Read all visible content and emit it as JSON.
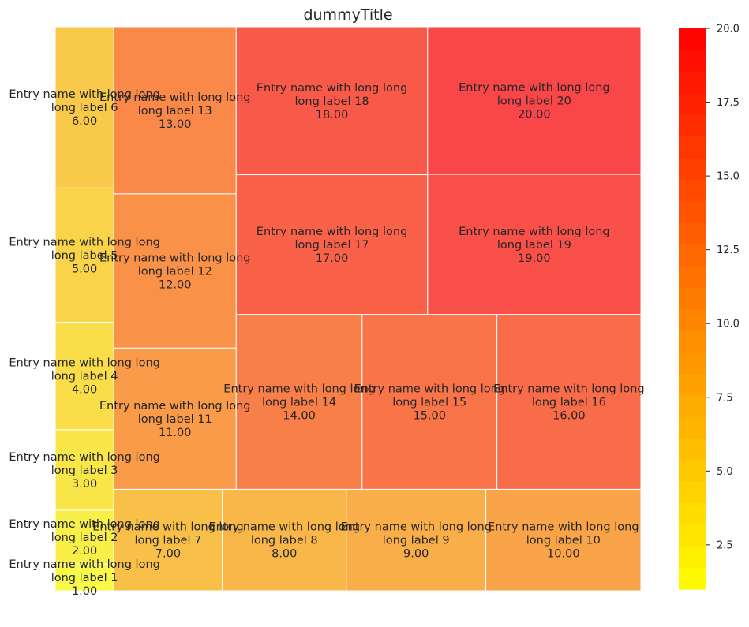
{
  "chart_data": {
    "type": "treemap",
    "title": "dummyTitle",
    "value_format": "2 decimals",
    "entries": [
      {
        "label": "Entry name with long long long label 1",
        "value": 1.0
      },
      {
        "label": "Entry name with long long long label 2",
        "value": 2.0
      },
      {
        "label": "Entry name with long long long label 3",
        "value": 3.0
      },
      {
        "label": "Entry name with long long long label 4",
        "value": 4.0
      },
      {
        "label": "Entry name with long long long label 5",
        "value": 5.0
      },
      {
        "label": "Entry name with long long long label 6",
        "value": 6.0
      },
      {
        "label": "Entry name with long long long label 7",
        "value": 7.0
      },
      {
        "label": "Entry name with long long long label 8",
        "value": 8.0
      },
      {
        "label": "Entry name with long long long label 9",
        "value": 9.0
      },
      {
        "label": "Entry name with long long long label 10",
        "value": 10.0
      },
      {
        "label": "Entry name with long long long label 11",
        "value": 11.0
      },
      {
        "label": "Entry name with long long long label 12",
        "value": 12.0
      },
      {
        "label": "Entry name with long long long label 13",
        "value": 13.0
      },
      {
        "label": "Entry name with long long long label 14",
        "value": 14.0
      },
      {
        "label": "Entry name with long long long label 15",
        "value": 15.0
      },
      {
        "label": "Entry name with long long long label 16",
        "value": 16.0
      },
      {
        "label": "Entry name with long long long label 17",
        "value": 17.0
      },
      {
        "label": "Entry name with long long long label 18",
        "value": 18.0
      },
      {
        "label": "Entry name with long long long label 19",
        "value": 19.0
      },
      {
        "label": "Entry name with long long long label 20",
        "value": 20.0
      }
    ],
    "colorbar": {
      "min": 1,
      "max": 20,
      "ticks": [
        "2.5",
        "5.0",
        "7.5",
        "10.0",
        "12.5",
        "15.0",
        "17.5",
        "20.0"
      ],
      "colormap": "autumn_r (yellow to red)"
    },
    "colors": {
      "low": "#ffff00",
      "high": "#ff0000",
      "tile_border": "#ffffff",
      "text": "#262626"
    },
    "tile_alpha": 0.7,
    "grid": false
  }
}
